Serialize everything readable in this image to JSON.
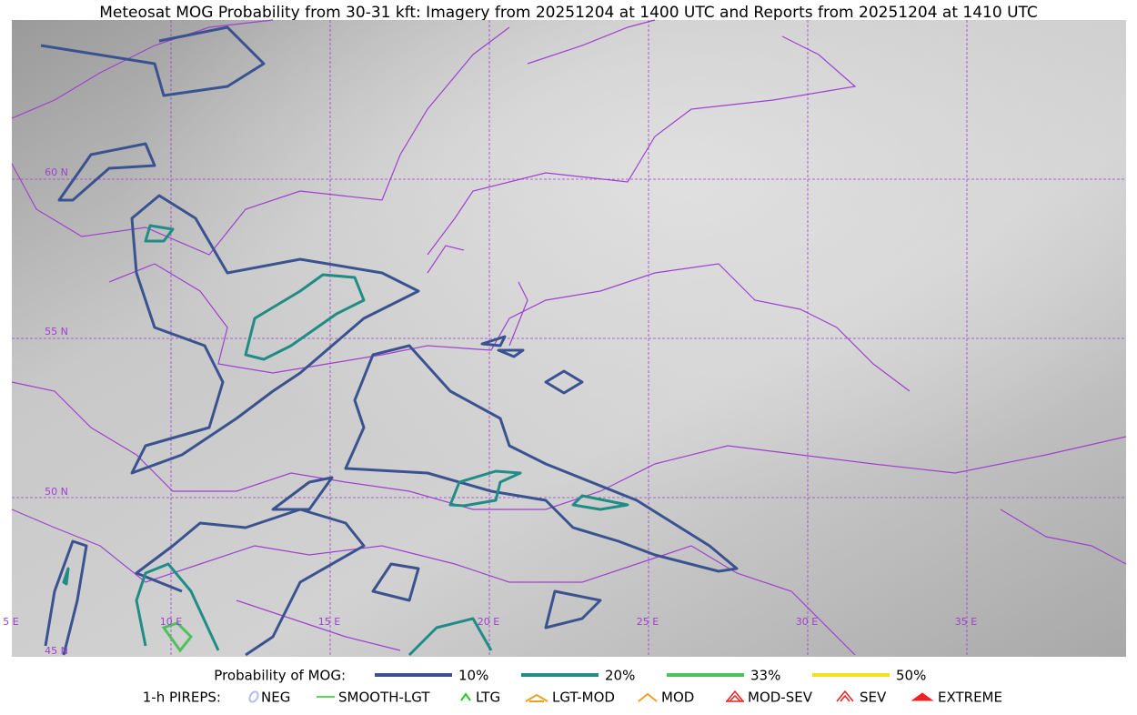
{
  "title": "Meteosat MOG Probability from 30-31 kft: Imagery from 20251204 at 1400 UTC and Reports from 20251204 at 1410 UTC",
  "grid_labels": {
    "latitudes": [
      "60 N",
      "55 N",
      "50 N",
      "45 N"
    ],
    "longitudes": [
      "5 E",
      "10 E",
      "15 E",
      "20 E",
      "25 E",
      "30 E",
      "35 E"
    ]
  },
  "legend": {
    "probability": {
      "label": "Probability of MOG:",
      "items": [
        {
          "label": "10%",
          "color": "#3a5390"
        },
        {
          "label": "20%",
          "color": "#1f8c86"
        },
        {
          "label": "33%",
          "color": "#4cc25a"
        },
        {
          "label": "50%",
          "color": "#f2e21c"
        }
      ]
    },
    "pireps": {
      "label": "1-h PIREPS:",
      "items": [
        {
          "label": "NEG",
          "color": "#b8b8f0"
        },
        {
          "label": "SMOOTH-LGT",
          "color": "#22cc22"
        },
        {
          "label": "LTG",
          "color": "#22cc22"
        },
        {
          "label": "LGT-MOD",
          "color": "#f0a020"
        },
        {
          "label": "MOD",
          "color": "#f0a020"
        },
        {
          "label": "MOD-SEV",
          "color": "#ee2020"
        },
        {
          "label": "SEV",
          "color": "#ee2020"
        },
        {
          "label": "EXTREME",
          "color": "#ee2020"
        }
      ]
    }
  }
}
